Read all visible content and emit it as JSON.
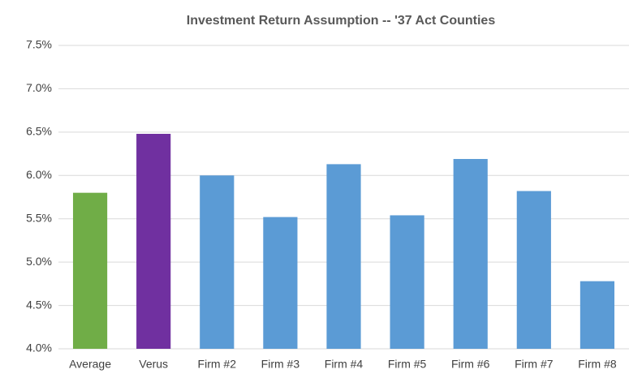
{
  "chart_data": {
    "type": "bar",
    "title": "Investment Return Assumption -- '37 Act Counties",
    "categories": [
      "Average",
      "Verus",
      "Firm #2",
      "Firm #3",
      "Firm #4",
      "Firm #5",
      "Firm #6",
      "Firm #7",
      "Firm #8"
    ],
    "values": [
      5.8,
      6.48,
      6.0,
      5.52,
      6.13,
      5.54,
      6.19,
      5.82,
      4.78
    ],
    "colors": [
      "#70ad47",
      "#7030a0",
      "#5b9bd5",
      "#5b9bd5",
      "#5b9bd5",
      "#5b9bd5",
      "#5b9bd5",
      "#5b9bd5",
      "#5b9bd5"
    ],
    "ylim": [
      4.0,
      7.5
    ],
    "yticks": [
      {
        "value": 4.0,
        "label": "4.0%"
      },
      {
        "value": 4.5,
        "label": "4.5%"
      },
      {
        "value": 5.0,
        "label": "5.0%"
      },
      {
        "value": 5.5,
        "label": "5.5%"
      },
      {
        "value": 6.0,
        "label": "6.0%"
      },
      {
        "value": 6.5,
        "label": "6.5%"
      },
      {
        "value": 7.0,
        "label": "7.0%"
      },
      {
        "value": 7.5,
        "label": "7.5%"
      }
    ],
    "grid": true
  }
}
